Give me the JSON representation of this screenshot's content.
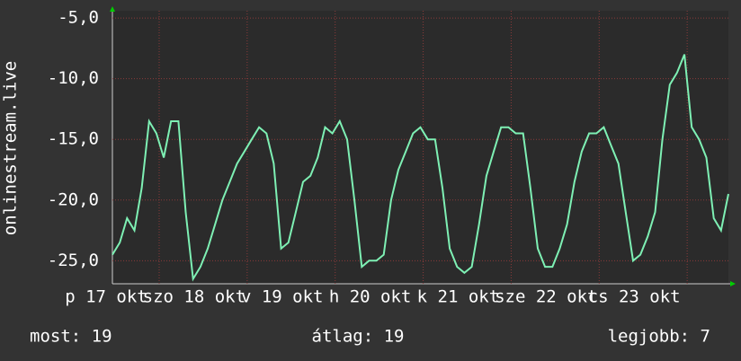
{
  "chart_data": {
    "type": "line",
    "y_label": "onlinestream.live",
    "categories": [
      "p 17 okt",
      null,
      null,
      null,
      null,
      null,
      null,
      null,
      null,
      null,
      null,
      null,
      "szo 18 okt",
      null,
      null,
      null,
      null,
      null,
      null,
      null,
      null,
      null,
      null,
      null,
      "v 19 okt",
      null,
      null,
      null,
      null,
      null,
      null,
      null,
      null,
      null,
      null,
      null,
      "h 20 okt",
      null,
      null,
      null,
      null,
      null,
      null,
      null,
      null,
      null,
      null,
      null,
      "k 21 okt",
      null,
      null,
      null,
      null,
      null,
      null,
      null,
      null,
      null,
      null,
      null,
      "sze 22 okt",
      null,
      null,
      null,
      null,
      null,
      null,
      null,
      null,
      null,
      null,
      null,
      "cs 23 okt",
      null,
      null,
      null,
      null,
      null,
      null,
      null,
      null,
      null,
      null,
      null,
      null
    ],
    "series": [
      {
        "color": "#7ef0b4",
        "values": [
          -24.5,
          -23.5,
          -21.5,
          -22.5,
          -19,
          -13.5,
          -14.5,
          -16.5,
          -13.5,
          -13.5,
          -21,
          -26.5,
          -25.5,
          -24,
          -22,
          -20,
          -18.5,
          -17,
          -16,
          -15,
          -14,
          -14.5,
          -17,
          -24,
          -23.5,
          -21,
          -18.5,
          -18,
          -16.5,
          -14,
          -14.5,
          -13.5,
          -15,
          -20,
          -25.5,
          -25,
          -25,
          -24.5,
          -20,
          -17.5,
          -16,
          -14.5,
          -14,
          -15,
          -15,
          -19,
          -24,
          -25.5,
          -26,
          -25.5,
          -22,
          -18,
          -16,
          -14,
          -14,
          -14.5,
          -14.5,
          -19,
          -24,
          -25.5,
          -25.5,
          -24,
          -22,
          -18.5,
          -16,
          -14.5,
          -14.5,
          -14,
          -15.5,
          -17,
          -21,
          -25,
          -24.5,
          -23,
          -21,
          -15,
          -10.5,
          -9.5,
          -8,
          -14,
          -15,
          -16.5,
          -21.5,
          -22.5,
          -19.5
        ]
      }
    ],
    "ylim": [
      -26.9,
      -4.4
    ],
    "yticks": [
      {
        "value": -5,
        "label": "-5,0"
      },
      {
        "value": -10,
        "label": "-10,0"
      },
      {
        "value": -15,
        "label": "-15,0"
      },
      {
        "value": -20,
        "label": "-20,0"
      },
      {
        "value": -25,
        "label": "-25,0"
      }
    ],
    "grid": true,
    "stats": [
      "most: 19",
      "átlag: 19",
      "legjobb: 7"
    ]
  }
}
